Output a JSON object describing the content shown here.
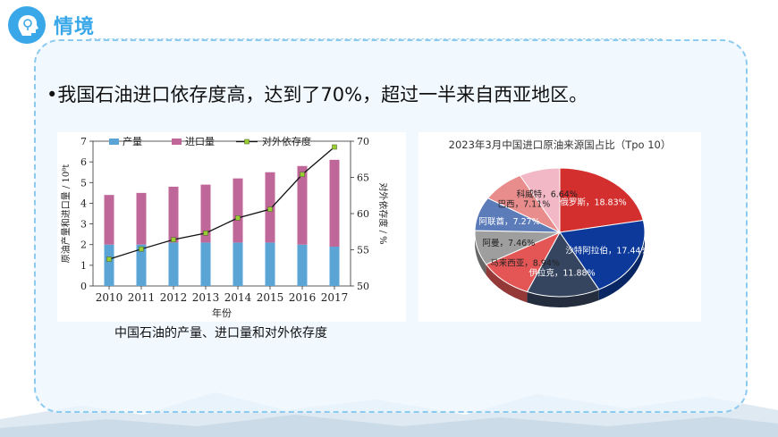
{
  "header": {
    "title": "情境",
    "icon": "idea-head-icon"
  },
  "bullet": {
    "marker": "•",
    "text": "我国石油进口依存度高，达到了70%，超过一半来自西亚地区。"
  },
  "colors": {
    "accent": "#3aa8e8",
    "production": "#5aa5d6",
    "import": "#c0679a",
    "dependency_line": "#111111",
    "dependency_marker": "#9acd32"
  },
  "caption": "中国石油的产量、进口量和对外依存度",
  "chart_data": [
    {
      "type": "bar",
      "stacked": true,
      "categories": [
        "2010",
        "2011",
        "2012",
        "2013",
        "2014",
        "2015",
        "2016",
        "2017"
      ],
      "series": [
        {
          "name": "产量",
          "values": [
            2.0,
            2.0,
            2.1,
            2.1,
            2.1,
            2.1,
            2.0,
            1.9
          ]
        },
        {
          "name": "进口量",
          "values": [
            2.4,
            2.5,
            2.7,
            2.8,
            3.1,
            3.4,
            3.8,
            4.2
          ]
        }
      ],
      "line_series": {
        "name": "对外依存度",
        "values": [
          53.7,
          55.1,
          56.4,
          57.3,
          59.4,
          60.6,
          65.4,
          69.2
        ]
      },
      "xlabel": "年份",
      "ylabel": "原油产量和进口量 / 10⁸t",
      "y2label": "对外依存度 / %",
      "ylim": [
        0,
        7
      ],
      "y2lim": [
        50,
        70
      ],
      "yticks": [
        "0",
        "1",
        "2",
        "3",
        "4",
        "5",
        "6",
        "7"
      ],
      "y2ticks": [
        "50",
        "55",
        "60",
        "65",
        "70"
      ],
      "legend_position": "top"
    },
    {
      "type": "pie",
      "title": "2023年3月中国进口原油来源国占比（Tpo 10）",
      "slices": [
        {
          "label": "俄罗斯",
          "value_label": "18.83%",
          "value": 18.83,
          "color": "#d32f2f"
        },
        {
          "label": "沙特阿拉伯",
          "value_label": "17.44%",
          "value": 17.44,
          "color": "#0d3a9a"
        },
        {
          "label": "伊拉克",
          "value_label": "11.88%",
          "value": 11.88,
          "color": "#36455f"
        },
        {
          "label": "马来西亚",
          "value_label": "8.94%",
          "value": 8.94,
          "color": "#e45656"
        },
        {
          "label": "阿曼",
          "value_label": "7.46%",
          "value": 7.46,
          "color": "#9e9e9e"
        },
        {
          "label": "阿联酋",
          "value_label": "7.27%",
          "value": 7.27,
          "color": "#5b7bb9"
        },
        {
          "label": "巴西",
          "value_label": "7.11%",
          "value": 7.11,
          "color": "#e98c8c"
        },
        {
          "label": "科威特",
          "value_label": "6.64%",
          "value": 6.64,
          "color": "#f2b8c6"
        }
      ]
    }
  ]
}
